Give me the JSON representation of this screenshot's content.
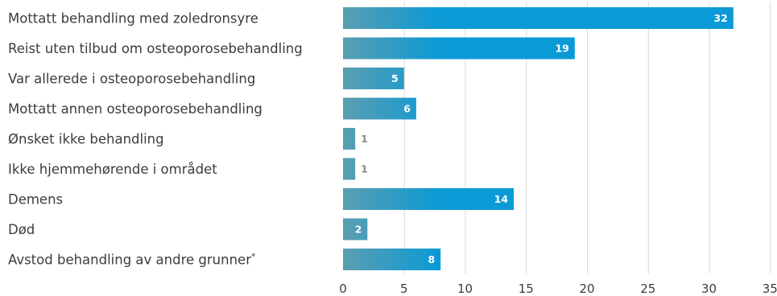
{
  "chart_data": {
    "type": "bar",
    "orientation": "horizontal",
    "categories": [
      "Mottatt behandling med zoledronsyre",
      "Reist uten tilbud om osteoporosebehandling",
      "Var allerede i osteoporosebehandling",
      "Mottatt annen osteoporosebehandling",
      "Ønsket ikke behandling",
      "Ikke hjemmehørende i området",
      "Demens",
      "Død",
      "Avstod behandling av andre grunner*"
    ],
    "values": [
      32,
      19,
      5,
      6,
      1,
      1,
      14,
      2,
      8
    ],
    "data_labels": [
      "32",
      "19",
      "5",
      "6",
      "1",
      "1",
      "14",
      "2",
      "8"
    ],
    "title": "",
    "xlabel": "",
    "ylabel": "",
    "xlim": [
      0,
      35
    ],
    "xticks": [
      0,
      5,
      10,
      15,
      20,
      25,
      30,
      35
    ],
    "xtick_labels": [
      "0",
      "5",
      "10",
      "15",
      "20",
      "25",
      "30",
      "35"
    ],
    "grid": "vertical",
    "legend": "none",
    "colors": {
      "bar_gradient_start": "#5b9eb0",
      "bar_gradient_end": "#0a9ad6",
      "grid": "#d9d9d9",
      "text": "#3c3c3c",
      "label_inside": "#ffffff",
      "label_outside": "#8a8a8a"
    }
  }
}
